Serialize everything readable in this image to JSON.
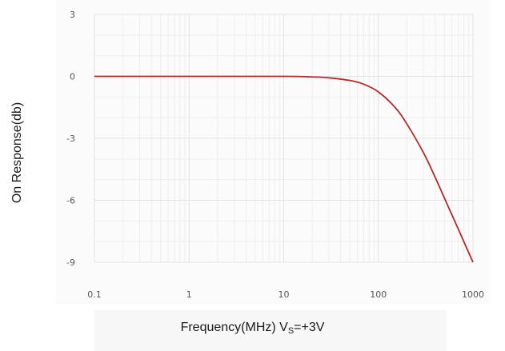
{
  "chart_data": {
    "type": "line",
    "xscale": "log",
    "xlim": [
      0.1,
      1000
    ],
    "ylim": [
      -9,
      3
    ],
    "xticks": [
      0.1,
      1,
      10,
      100,
      1000
    ],
    "xtick_labels": [
      "0.1",
      "1",
      "10",
      "100",
      "1000"
    ],
    "yticks": [
      3,
      0,
      -3,
      -6,
      -9
    ],
    "ytick_labels": [
      "3",
      "0",
      "-3",
      "-6",
      "-9"
    ],
    "ylabel": "On Response(db)",
    "xlabel": {
      "text": "Frequency(MHz) V",
      "subscript": "S",
      "suffix": "=+3V"
    },
    "grid": true,
    "series": [
      {
        "color": "#b22a2a",
        "x": [
          0.1,
          1,
          10,
          20,
          30,
          50,
          70,
          100,
          150,
          200,
          300,
          400,
          500,
          700,
          1000
        ],
        "y": [
          0,
          0,
          0,
          -0.03,
          -0.07,
          -0.2,
          -0.38,
          -0.75,
          -1.5,
          -2.3,
          -3.7,
          -4.9,
          -5.9,
          -7.4,
          -9.0
        ]
      }
    ]
  }
}
